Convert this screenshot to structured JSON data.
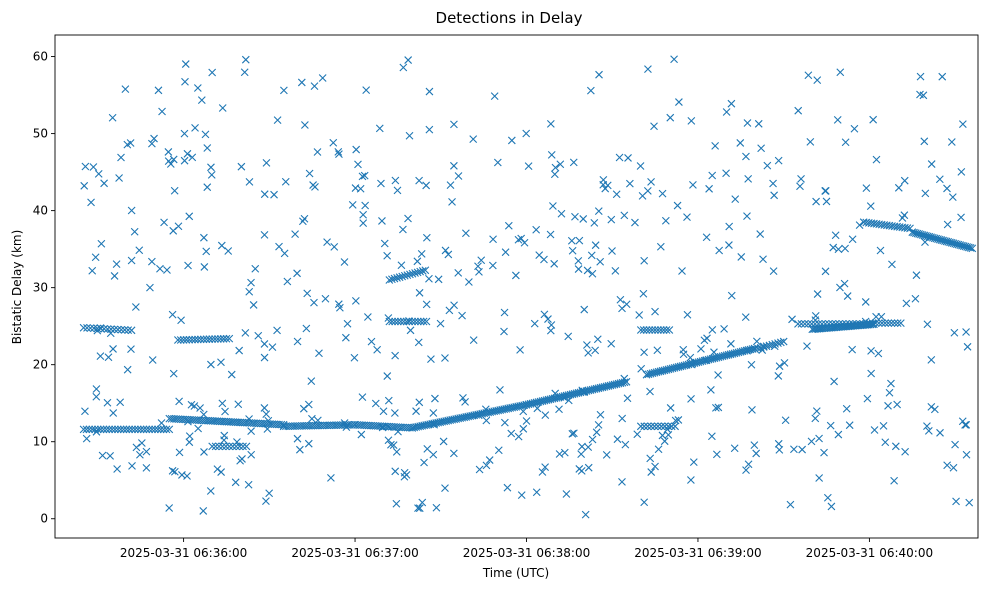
{
  "chart_data": {
    "type": "scatter",
    "title": "Detections in Delay",
    "xlabel": "Time (UTC)",
    "ylabel": "Bistatic Delay (km)",
    "x_unit": "time",
    "xlim": [
      "2025-03-31 06:35:15",
      "2025-03-31 06:40:38"
    ],
    "ylim": [
      -2.5,
      62.8
    ],
    "x_ticks": [
      {
        "value": "2025-03-31 06:36:00",
        "label": "2025-03-31 06:36:00"
      },
      {
        "value": "2025-03-31 06:37:00",
        "label": "2025-03-31 06:37:00"
      },
      {
        "value": "2025-03-31 06:38:00",
        "label": "2025-03-31 06:38:00"
      },
      {
        "value": "2025-03-31 06:39:00",
        "label": "2025-03-31 06:39:00"
      },
      {
        "value": "2025-03-31 06:40:00",
        "label": "2025-03-31 06:40:00"
      }
    ],
    "y_ticks": [
      0,
      10,
      20,
      30,
      40,
      50,
      60
    ],
    "grid": false,
    "marker": "x",
    "color": "#1f77b4",
    "series": [
      {
        "tracks": [
          {
            "start": "2025-03-31 06:35:25",
            "end": "2025-03-31 06:35:55",
            "y": 11.6,
            "step": 1.0,
            "slope": 0.0
          },
          {
            "start": "2025-03-31 06:35:55",
            "end": "2025-03-31 06:36:35",
            "y": 13.0,
            "step": 0.8,
            "slope": -0.02
          },
          {
            "start": "2025-03-31 06:36:35",
            "end": "2025-03-31 06:37:00",
            "y": 12.0,
            "step": 0.8,
            "slope": 0.008
          },
          {
            "start": "2025-03-31 06:37:00",
            "end": "2025-03-31 06:37:20",
            "y": 12.2,
            "step": 0.8,
            "slope": -0.02
          },
          {
            "start": "2025-03-31 06:37:20",
            "end": "2025-03-31 06:38:00",
            "y": 11.8,
            "step": 0.7,
            "slope": 0.075
          },
          {
            "start": "2025-03-31 06:38:00",
            "end": "2025-03-31 06:38:35",
            "y": 14.8,
            "step": 0.7,
            "slope": 0.085
          },
          {
            "start": "2025-03-31 06:38:42",
            "end": "2025-03-31 06:39:20",
            "y": 18.7,
            "step": 0.7,
            "slope": 0.09
          },
          {
            "start": "2025-03-31 06:39:20",
            "end": "2025-03-31 06:39:30",
            "y": 22.0,
            "step": 1.0,
            "slope": 0.1
          },
          {
            "start": "2025-03-31 06:39:40",
            "end": "2025-03-31 06:40:02",
            "y": 24.6,
            "step": 0.6,
            "slope": 0.03
          },
          {
            "start": "2025-03-31 06:39:35",
            "end": "2025-03-31 06:40:02",
            "y": 25.3,
            "step": 1.2,
            "slope": 0.0
          },
          {
            "start": "2025-03-31 06:35:25",
            "end": "2025-03-31 06:35:42",
            "y": 24.8,
            "step": 1.2,
            "slope": -0.02
          },
          {
            "start": "2025-03-31 06:35:58",
            "end": "2025-03-31 06:36:16",
            "y": 23.2,
            "step": 1.0,
            "slope": 0.01
          },
          {
            "start": "2025-03-31 06:37:12",
            "end": "2025-03-31 06:37:25",
            "y": 31.0,
            "step": 0.9,
            "slope": 0.1
          },
          {
            "start": "2025-03-31 06:37:12",
            "end": "2025-03-31 06:37:25",
            "y": 25.6,
            "step": 1.0,
            "slope": 0.0
          },
          {
            "start": "2025-03-31 06:38:40",
            "end": "2025-03-31 06:38:50",
            "y": 24.5,
            "step": 1.0,
            "slope": 0.0
          },
          {
            "start": "2025-03-31 06:39:58",
            "end": "2025-03-31 06:40:15",
            "y": 38.5,
            "step": 0.9,
            "slope": -0.05
          },
          {
            "start": "2025-03-31 06:40:15",
            "end": "2025-03-31 06:40:36",
            "y": 37.2,
            "step": 0.6,
            "slope": -0.1
          },
          {
            "start": "2025-03-31 06:40:00",
            "end": "2025-03-31 06:40:12",
            "y": 25.4,
            "step": 1.1,
            "slope": 0.0
          },
          {
            "start": "2025-03-31 06:36:10",
            "end": "2025-03-31 06:36:22",
            "y": 9.4,
            "step": 1.2,
            "slope": 0.0
          },
          {
            "start": "2025-03-31 06:38:40",
            "end": "2025-03-31 06:38:52",
            "y": 12.0,
            "step": 1.2,
            "slope": 0.0
          }
        ],
        "scatter": {
          "count": 640,
          "seed": 7,
          "y_range": [
            0.5,
            60.0
          ],
          "band_fraction": 0.45,
          "band_centers": [
            10.0,
            12.0,
            24.5,
            35.5,
            45.0
          ],
          "band_spread": 4.0
        }
      }
    ]
  }
}
